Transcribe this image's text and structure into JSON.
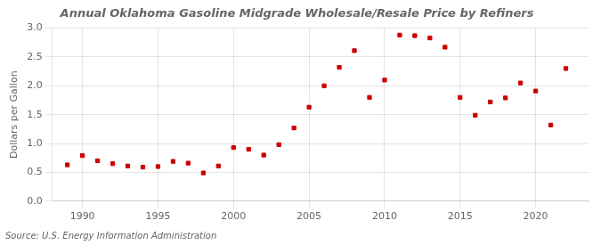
{
  "chart_data": {
    "type": "scatter",
    "title": "Annual Oklahoma Gasoline Midgrade Wholesale/Resale Price by Refiners",
    "ylabel": "Dollars per Gallon",
    "annotation": "Source: U.S. Energy Information Administration",
    "x": [
      1989,
      1990,
      1991,
      1992,
      1993,
      1994,
      1995,
      1996,
      1997,
      1998,
      1999,
      2000,
      2001,
      2002,
      2003,
      2004,
      2005,
      2006,
      2007,
      2008,
      2009,
      2010,
      2011,
      2012,
      2013,
      2014,
      2015,
      2016,
      2017,
      2018,
      2019,
      2020,
      2021,
      2022
    ],
    "values": [
      0.63,
      0.79,
      0.7,
      0.65,
      0.61,
      0.59,
      0.6,
      0.69,
      0.66,
      0.49,
      0.61,
      0.93,
      0.9,
      0.8,
      0.98,
      1.27,
      1.63,
      2.0,
      2.32,
      2.61,
      1.8,
      2.1,
      2.88,
      2.87,
      2.83,
      2.67,
      1.8,
      1.49,
      1.72,
      1.79,
      2.05,
      1.91,
      1.32,
      2.3
    ],
    "color": "#cc0000",
    "marker": "square",
    "xlim": [
      1988.0,
      2023.5
    ],
    "xticks": [
      1990,
      1995,
      2000,
      2005,
      2010,
      2015,
      2020
    ],
    "ylim": [
      0.0,
      3.0
    ],
    "yticks": [
      {
        "value": 0.0,
        "label": "0.0"
      },
      0.5,
      {
        "value": 1.0,
        "label": "1.0"
      },
      1.5,
      {
        "value": 2.0,
        "label": "2.0"
      },
      2.5,
      {
        "value": 3.0,
        "label": "3.0"
      }
    ],
    "grid": true
  }
}
